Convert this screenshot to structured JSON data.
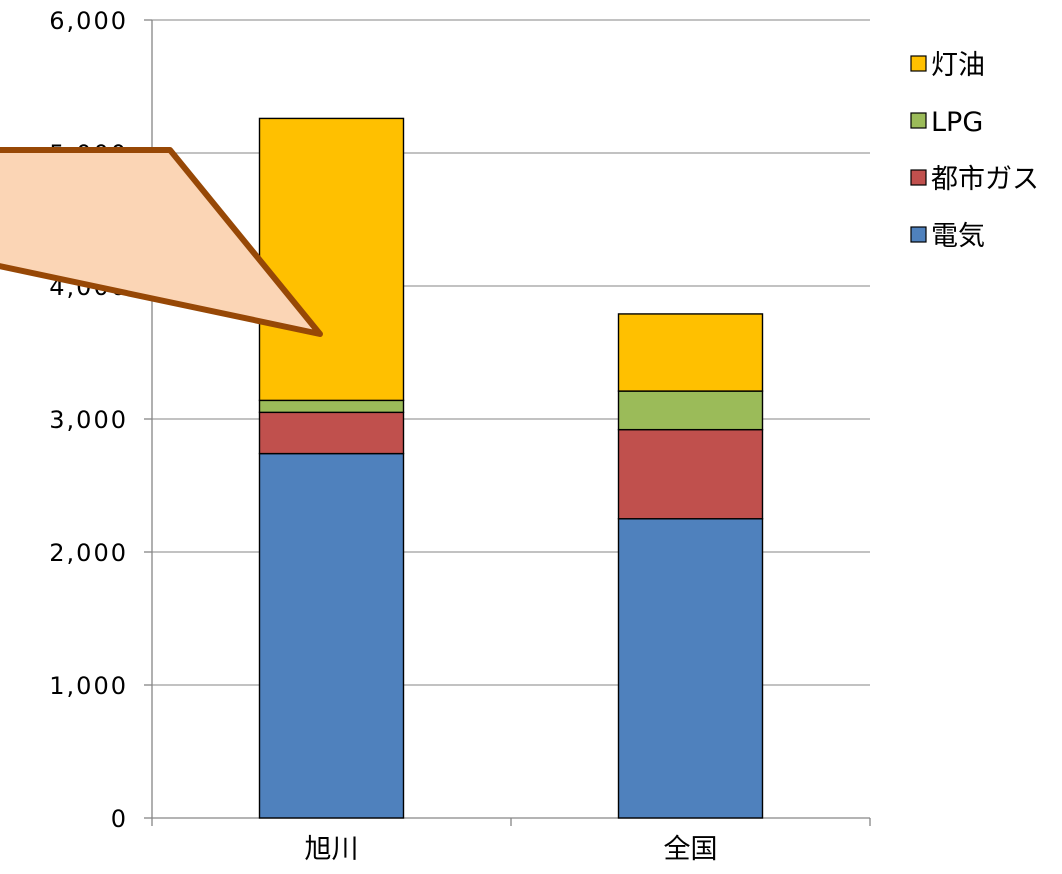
{
  "chart_data": {
    "type": "bar",
    "stacked": true,
    "categories": [
      "旭川",
      "全国"
    ],
    "series": [
      {
        "name": "電気",
        "color": "#4F81BD",
        "values": [
          2740,
          2250
        ]
      },
      {
        "name": "都市ガス",
        "color": "#C0504D",
        "values": [
          310,
          670
        ]
      },
      {
        "name": "LPG",
        "color": "#9BBB59",
        "values": [
          90,
          290
        ]
      },
      {
        "name": "灯油",
        "color": "#FFC000",
        "values": [
          2120,
          580
        ]
      }
    ],
    "ylim": [
      0,
      6000
    ],
    "yticks": [
      "0",
      "1,000",
      "2,000",
      "3,000",
      "4,000",
      "5,000",
      "6,000"
    ],
    "ytick_values": [
      0,
      1000,
      2000,
      3000,
      4000,
      5000,
      6000
    ],
    "grid": true,
    "legend": {
      "position": "right",
      "order": [
        "灯油",
        "LPG",
        "都市ガス",
        "電気"
      ]
    },
    "annotation": {
      "shape": "callout",
      "fill": "#FBD5B5",
      "stroke": "#974806",
      "points_to_category": "旭川",
      "points_to_value": 3650
    }
  }
}
